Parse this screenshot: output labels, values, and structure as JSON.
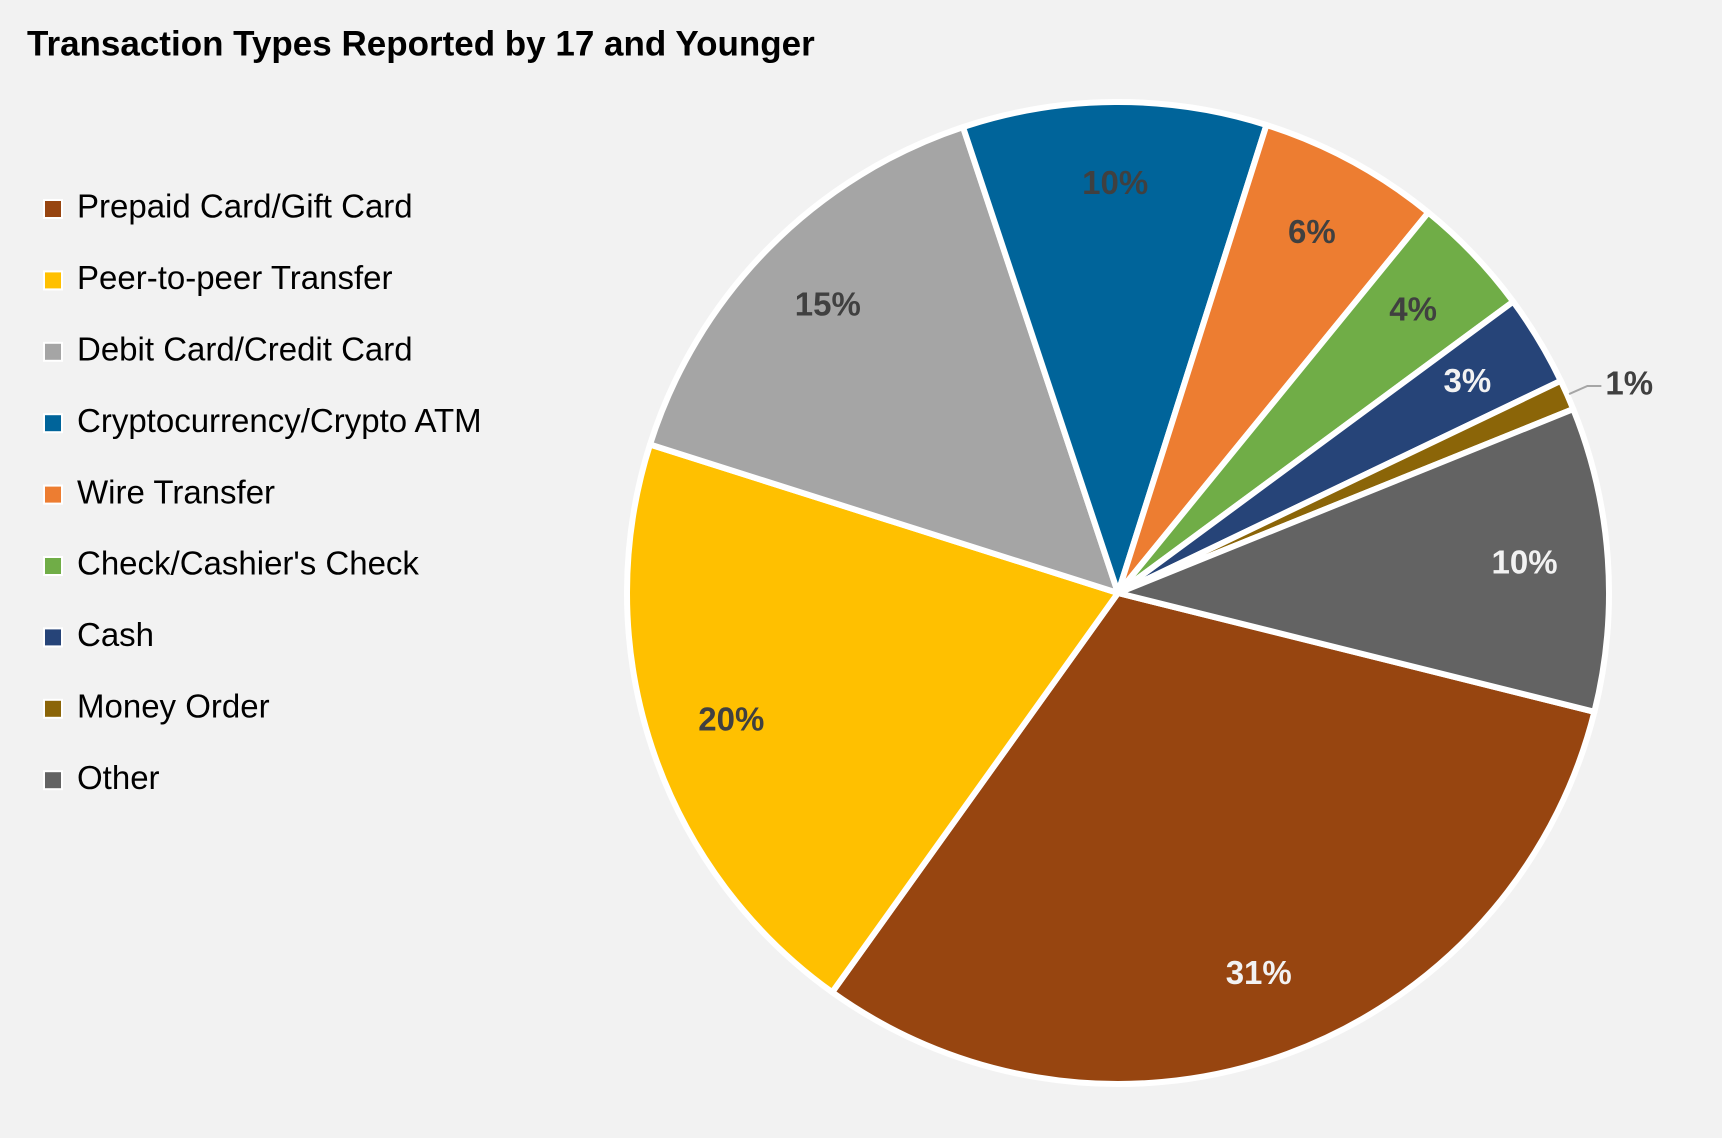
{
  "chart_data": {
    "type": "pie",
    "title": "Transaction Types Reported by 17 and Younger",
    "categories": [
      "Prepaid Card/Gift Card",
      "Peer-to-peer Transfer",
      "Debit Card/Credit Card",
      "Cryptocurrency/Crypto ATM",
      "Wire Transfer",
      "Check/Cashier's Check",
      "Cash",
      "Money Order",
      "Other"
    ],
    "values": [
      31,
      20,
      15,
      10,
      6,
      4,
      3,
      1,
      10
    ],
    "value_labels": [
      "31%",
      "20%",
      "15%",
      "10%",
      "6%",
      "4%",
      "3%",
      "1%",
      "10%"
    ],
    "colors": [
      "#974510",
      "#FFC000",
      "#A5A5A5",
      "#00649A",
      "#ED7D31",
      "#70AD47",
      "#264478",
      "#8B6508",
      "#636363"
    ],
    "label_colors": [
      "#f2f2f2",
      "#404040",
      "#404040",
      "#404040",
      "#404040",
      "#404040",
      "#f2f2f2",
      "#404040",
      "#f2f2f2"
    ],
    "legend": "left"
  }
}
